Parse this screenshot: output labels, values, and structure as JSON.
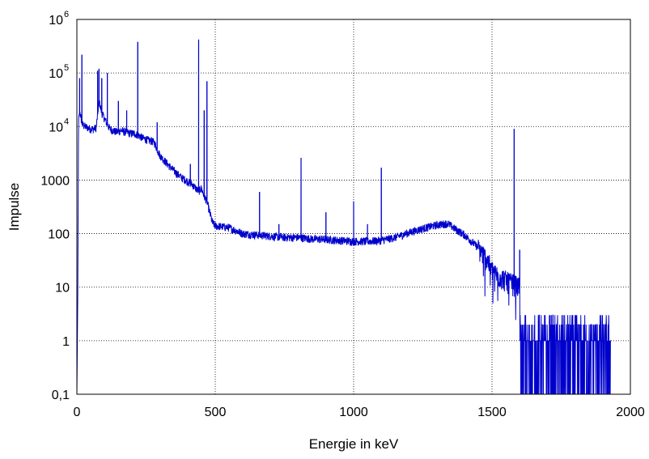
{
  "chart_data": {
    "type": "line",
    "xlabel": "Energie in keV",
    "ylabel": "Impulse",
    "xlim": [
      0,
      2000
    ],
    "ylim": [
      0.1,
      1000000
    ],
    "yscale": "log",
    "grid": true,
    "grid_style": "dotted",
    "line_color": "#0000cc",
    "x_ticks": [
      "0",
      "500",
      "1000",
      "1500",
      "2000"
    ],
    "y_ticks": [
      {
        "value": 0.1,
        "base": "0,1",
        "exp": ""
      },
      {
        "value": 1,
        "base": "1",
        "exp": ""
      },
      {
        "value": 10,
        "base": "10",
        "exp": ""
      },
      {
        "value": 100,
        "base": "100",
        "exp": ""
      },
      {
        "value": 1000,
        "base": "1000",
        "exp": ""
      },
      {
        "value": 10000,
        "base": "10",
        "exp": "4"
      },
      {
        "value": 100000,
        "base": "10",
        "exp": "5"
      },
      {
        "value": 1000000,
        "base": "10",
        "exp": "6"
      }
    ],
    "series": [
      {
        "x": [
          0,
          3,
          6,
          10,
          15,
          20,
          30,
          40,
          50,
          60,
          70,
          80,
          90,
          100,
          110,
          120,
          130,
          140,
          150,
          160,
          170,
          180,
          190,
          200,
          210,
          220,
          230,
          240,
          250,
          260,
          270,
          280,
          290,
          300,
          320,
          340,
          360,
          380,
          400,
          420,
          430,
          440,
          450,
          460,
          470,
          480,
          490,
          500,
          550,
          600,
          650,
          700,
          750,
          800,
          850,
          900,
          950,
          1000,
          1050,
          1100,
          1150,
          1200,
          1250,
          1300,
          1340,
          1360,
          1400,
          1450,
          1480,
          1500,
          1520,
          1540,
          1560,
          1580,
          1600,
          1620,
          1650,
          1700,
          1750,
          1800,
          1850,
          1900,
          1930
        ],
        "y": [
          0.1,
          4,
          12000,
          20000,
          14000,
          11000,
          10000,
          9500,
          9000,
          9000,
          9500,
          30000,
          18000,
          14000,
          11000,
          9000,
          8500,
          8000,
          8000,
          8500,
          8000,
          8000,
          7500,
          7500,
          7300,
          7000,
          6500,
          6000,
          5800,
          5500,
          5400,
          5000,
          3800,
          2900,
          2200,
          1700,
          1350,
          1100,
          950,
          800,
          700,
          620,
          700,
          500,
          400,
          250,
          160,
          140,
          130,
          100,
          95,
          90,
          85,
          85,
          80,
          78,
          75,
          72,
          72,
          75,
          85,
          105,
          125,
          145,
          155,
          130,
          95,
          55,
          35,
          22,
          17,
          15,
          13,
          12,
          10,
          4,
          2,
          2,
          2,
          2,
          2,
          1.5,
          1
        ]
      }
    ],
    "peaks": [
      {
        "x": 10,
        "y": 80000
      },
      {
        "x": 18,
        "y": 220000
      },
      {
        "x": 75,
        "y": 110000
      },
      {
        "x": 80,
        "y": 120000
      },
      {
        "x": 90,
        "y": 80000
      },
      {
        "x": 110,
        "y": 100000
      },
      {
        "x": 150,
        "y": 30000
      },
      {
        "x": 180,
        "y": 20000
      },
      {
        "x": 220,
        "y": 380000
      },
      {
        "x": 290,
        "y": 12000
      },
      {
        "x": 410,
        "y": 2000
      },
      {
        "x": 440,
        "y": 420000
      },
      {
        "x": 460,
        "y": 20000
      },
      {
        "x": 470,
        "y": 70000
      },
      {
        "x": 660,
        "y": 600
      },
      {
        "x": 730,
        "y": 150
      },
      {
        "x": 810,
        "y": 2600
      },
      {
        "x": 900,
        "y": 250
      },
      {
        "x": 1000,
        "y": 400
      },
      {
        "x": 1050,
        "y": 150
      },
      {
        "x": 1100,
        "y": 1700
      },
      {
        "x": 1580,
        "y": 9000
      },
      {
        "x": 1600,
        "y": 50
      }
    ]
  }
}
